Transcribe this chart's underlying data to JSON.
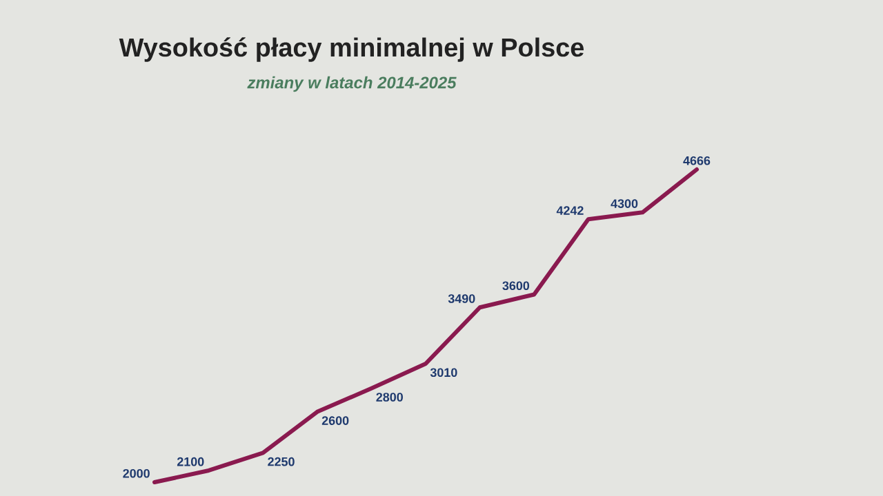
{
  "chart_data": {
    "type": "line",
    "title": "Wysokość płacy minimalnej w Polsce",
    "subtitle": "zmiany w latach 2014-2025",
    "categories": [
      null,
      null,
      null,
      null,
      null,
      null,
      null,
      null,
      null,
      null,
      null
    ],
    "series": [
      {
        "color": "#8a1a4f",
        "values": [
          2000,
          2100,
          2250,
          2600,
          2800,
          3010,
          3490,
          3600,
          4242,
          4300,
          4666
        ]
      }
    ],
    "data_labels": true,
    "marker": "none",
    "line_style": "solid"
  }
}
